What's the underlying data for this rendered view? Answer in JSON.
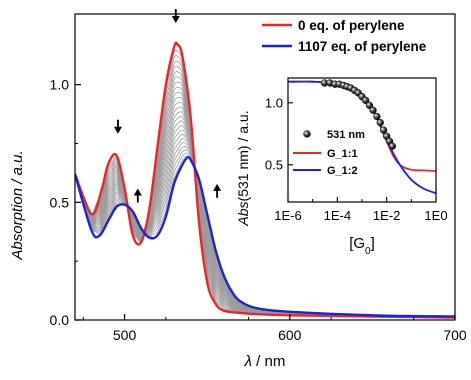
{
  "chart_data": [
    {
      "type": "line",
      "xlabel_symbol": "λ",
      "xlabel_rest": " / nm",
      "ylabel": "Absorption / a.u.",
      "xlim": [
        470,
        700
      ],
      "ylim": [
        0,
        1.3
      ],
      "x_ticks": [
        500,
        600,
        700
      ],
      "y_ticks": [
        0.0,
        0.5,
        1.0
      ],
      "x_tick_labels": [
        "500",
        "600",
        "700"
      ],
      "y_tick_labels": [
        "0.0",
        "0.5",
        "1.0"
      ],
      "legend": {
        "position": "top-right"
      },
      "series": [
        {
          "name": "0 eq. of perylene",
          "color": "#e8262c",
          "x": [
            470,
            480,
            486,
            490,
            495,
            500,
            505,
            510,
            515,
            520,
            525,
            530,
            532,
            535,
            540,
            545,
            550,
            555,
            560,
            570,
            580,
            600,
            650,
            700
          ],
          "y": [
            0.62,
            0.45,
            0.55,
            0.66,
            0.7,
            0.56,
            0.36,
            0.33,
            0.47,
            0.74,
            1.0,
            1.16,
            1.17,
            1.12,
            0.86,
            0.42,
            0.16,
            0.07,
            0.04,
            0.03,
            0.025,
            0.02,
            0.015,
            0.01
          ]
        },
        {
          "name": "1107 eq. of perylene",
          "color": "#1a24d6",
          "x": [
            470,
            480,
            485,
            490,
            495,
            500,
            505,
            510,
            515,
            520,
            525,
            530,
            535,
            538,
            540,
            545,
            550,
            555,
            560,
            565,
            570,
            580,
            600,
            650,
            700
          ],
          "y": [
            0.62,
            0.38,
            0.36,
            0.42,
            0.48,
            0.49,
            0.46,
            0.39,
            0.35,
            0.36,
            0.44,
            0.58,
            0.66,
            0.69,
            0.68,
            0.6,
            0.45,
            0.3,
            0.19,
            0.12,
            0.08,
            0.05,
            0.035,
            0.02,
            0.015
          ]
        }
      ],
      "intermediate_curves": {
        "count": 24,
        "color": "#9a9a9a"
      },
      "annotations": [
        {
          "type": "arrow",
          "direction": "down",
          "x": 496,
          "y": 0.8
        },
        {
          "type": "arrow",
          "direction": "up",
          "x": 508,
          "y": 0.55
        },
        {
          "type": "arrow",
          "direction": "down",
          "x": 531,
          "y": 1.27
        },
        {
          "type": "arrow",
          "direction": "up",
          "x": 556,
          "y": 0.57
        }
      ]
    },
    {
      "type": "scatter",
      "inset": true,
      "xlabel": "[G0]",
      "ylabel": "Abs(531 nm) / a.u.",
      "x_scale": "log",
      "xlim": [
        1e-06,
        1
      ],
      "ylim": [
        0.2,
        1.2
      ],
      "x_ticks": [
        1e-06,
        0.0001,
        0.01,
        1
      ],
      "x_tick_labels": [
        "1E-6",
        "1E-4",
        "1E-2",
        "1E0"
      ],
      "y_ticks": [
        0.5,
        1.0
      ],
      "y_tick_labels": [
        "0.5",
        "1.0"
      ],
      "legend": {
        "position": "bottom-left"
      },
      "points": {
        "name": "531 nm",
        "x": [
          3e-05,
          5e-05,
          8e-05,
          0.00012,
          0.00018,
          0.00025,
          0.00035,
          0.0005,
          0.0007,
          0.001,
          0.0014,
          0.002,
          0.0028,
          0.004,
          0.0055,
          0.0075,
          0.01,
          0.013,
          0.017
        ],
        "y": [
          1.16,
          1.16,
          1.15,
          1.15,
          1.14,
          1.13,
          1.12,
          1.1,
          1.08,
          1.05,
          1.02,
          0.98,
          0.94,
          0.89,
          0.84,
          0.78,
          0.73,
          0.69,
          0.65
        ]
      },
      "fits": [
        {
          "name": "G_1:1",
          "color": "#e8262c",
          "x": [
            1e-06,
            1e-05,
            0.0001,
            0.0003,
            0.001,
            0.003,
            0.006,
            0.01,
            0.02,
            0.04,
            0.1,
            0.3,
            1
          ],
          "y": [
            1.17,
            1.17,
            1.16,
            1.13,
            1.06,
            0.93,
            0.8,
            0.69,
            0.56,
            0.49,
            0.46,
            0.455,
            0.45
          ]
        },
        {
          "name": "G_1:2",
          "color": "#1a24d6",
          "x": [
            1e-06,
            1e-05,
            0.0001,
            0.0003,
            0.001,
            0.003,
            0.006,
            0.01,
            0.02,
            0.04,
            0.1,
            0.3,
            1
          ],
          "y": [
            1.17,
            1.17,
            1.16,
            1.13,
            1.06,
            0.93,
            0.8,
            0.7,
            0.58,
            0.48,
            0.38,
            0.31,
            0.27
          ]
        }
      ]
    }
  ]
}
